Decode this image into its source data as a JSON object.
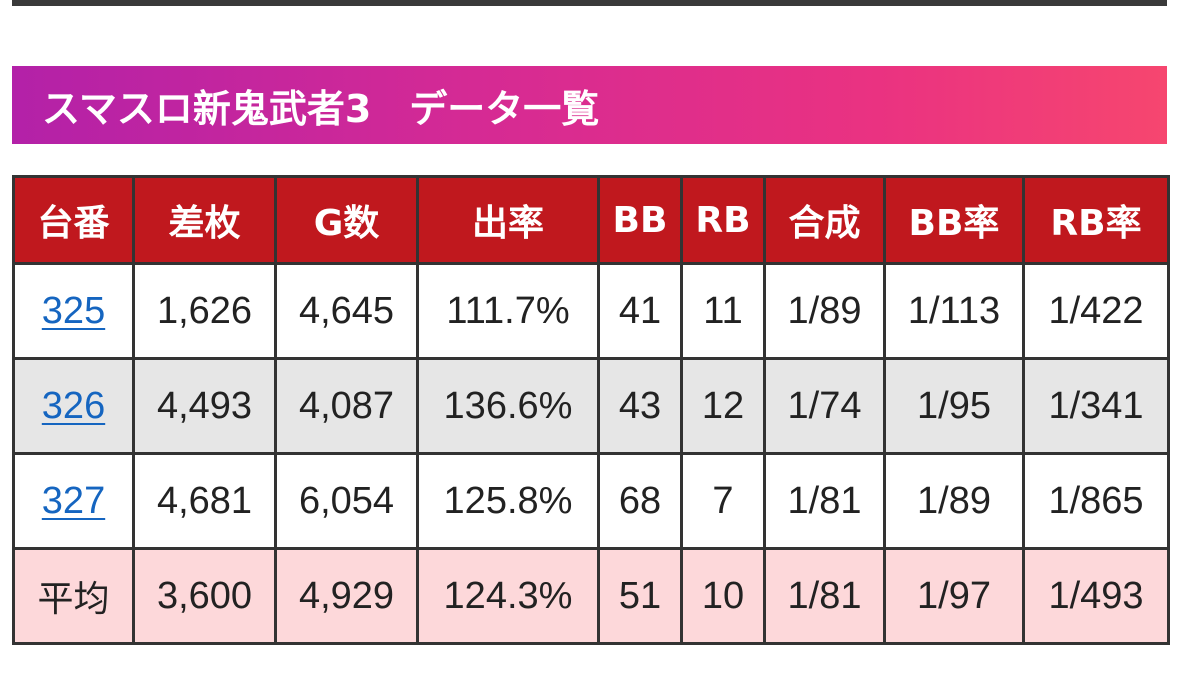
{
  "header": {
    "title": "スマスロ新鬼武者3　データ一覧"
  },
  "table": {
    "columns": [
      "台番",
      "差枚",
      "G数",
      "出率",
      "BB",
      "RB",
      "合成",
      "BB率",
      "RB率"
    ],
    "rows": [
      [
        "325",
        "1,626",
        "4,645",
        "111.7%",
        "41",
        "11",
        "1/89",
        "1/113",
        "1/422"
      ],
      [
        "326",
        "4,493",
        "4,087",
        "136.6%",
        "43",
        "12",
        "1/74",
        "1/95",
        "1/341"
      ],
      [
        "327",
        "4,681",
        "6,054",
        "125.8%",
        "68",
        "7",
        "1/81",
        "1/89",
        "1/865"
      ]
    ],
    "average": [
      "平均",
      "3,600",
      "4,929",
      "124.3%",
      "51",
      "10",
      "1/81",
      "1/97",
      "1/493"
    ]
  },
  "colors": {
    "header_gradient_start": "#b321a8",
    "header_gradient_end": "#f6466f",
    "table_header_bg": "#c0181e",
    "row_alt_bg": "#e6e6e6",
    "average_row_bg": "#fdd8da",
    "link": "#1565c0"
  }
}
